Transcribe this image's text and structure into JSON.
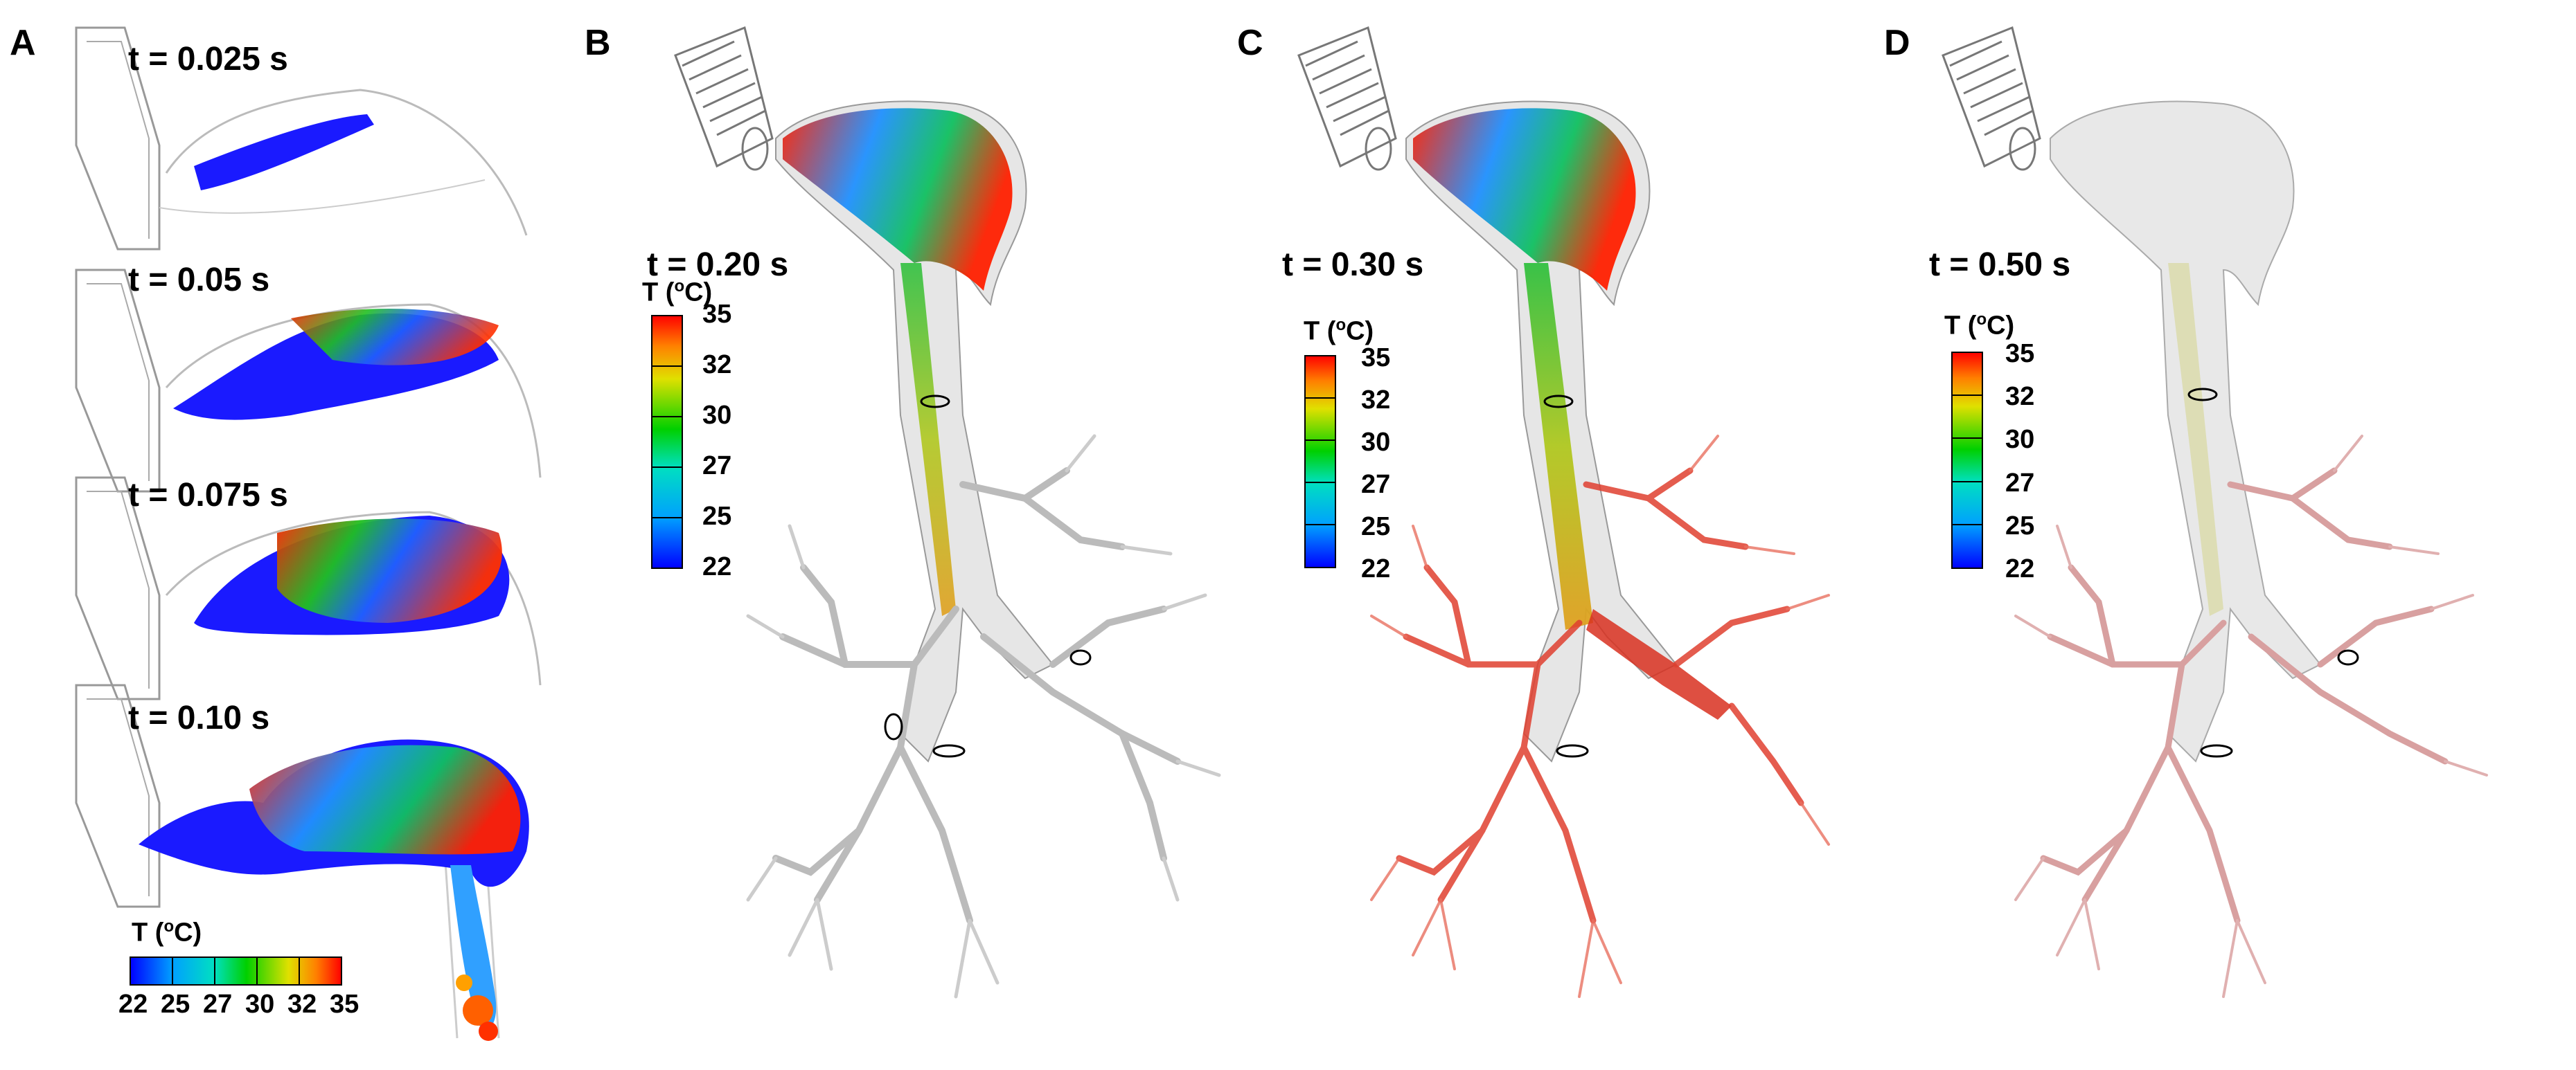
{
  "panels": [
    {
      "letter": "A"
    },
    {
      "letter": "B",
      "time": "t = 0.20 s"
    },
    {
      "letter": "C",
      "time": "t = 0.30 s"
    },
    {
      "letter": "D",
      "time": "t = 0.50 s"
    }
  ],
  "panel_a": {
    "frames": [
      {
        "time": "t = 0.025 s"
      },
      {
        "time": "t = 0.05 s"
      },
      {
        "time": "t = 0.075 s"
      },
      {
        "time": "t = 0.10 s"
      }
    ]
  },
  "legend": {
    "title_prefix": "T (",
    "title_sup": "o",
    "title_suffix": "C)",
    "ticks": [
      "22",
      "25",
      "27",
      "30",
      "32",
      "35"
    ],
    "colors": [
      "#0000ff",
      "#00a0ff",
      "#00e0c0",
      "#00d000",
      "#e0e000",
      "#ff8000",
      "#ff0000"
    ]
  }
}
